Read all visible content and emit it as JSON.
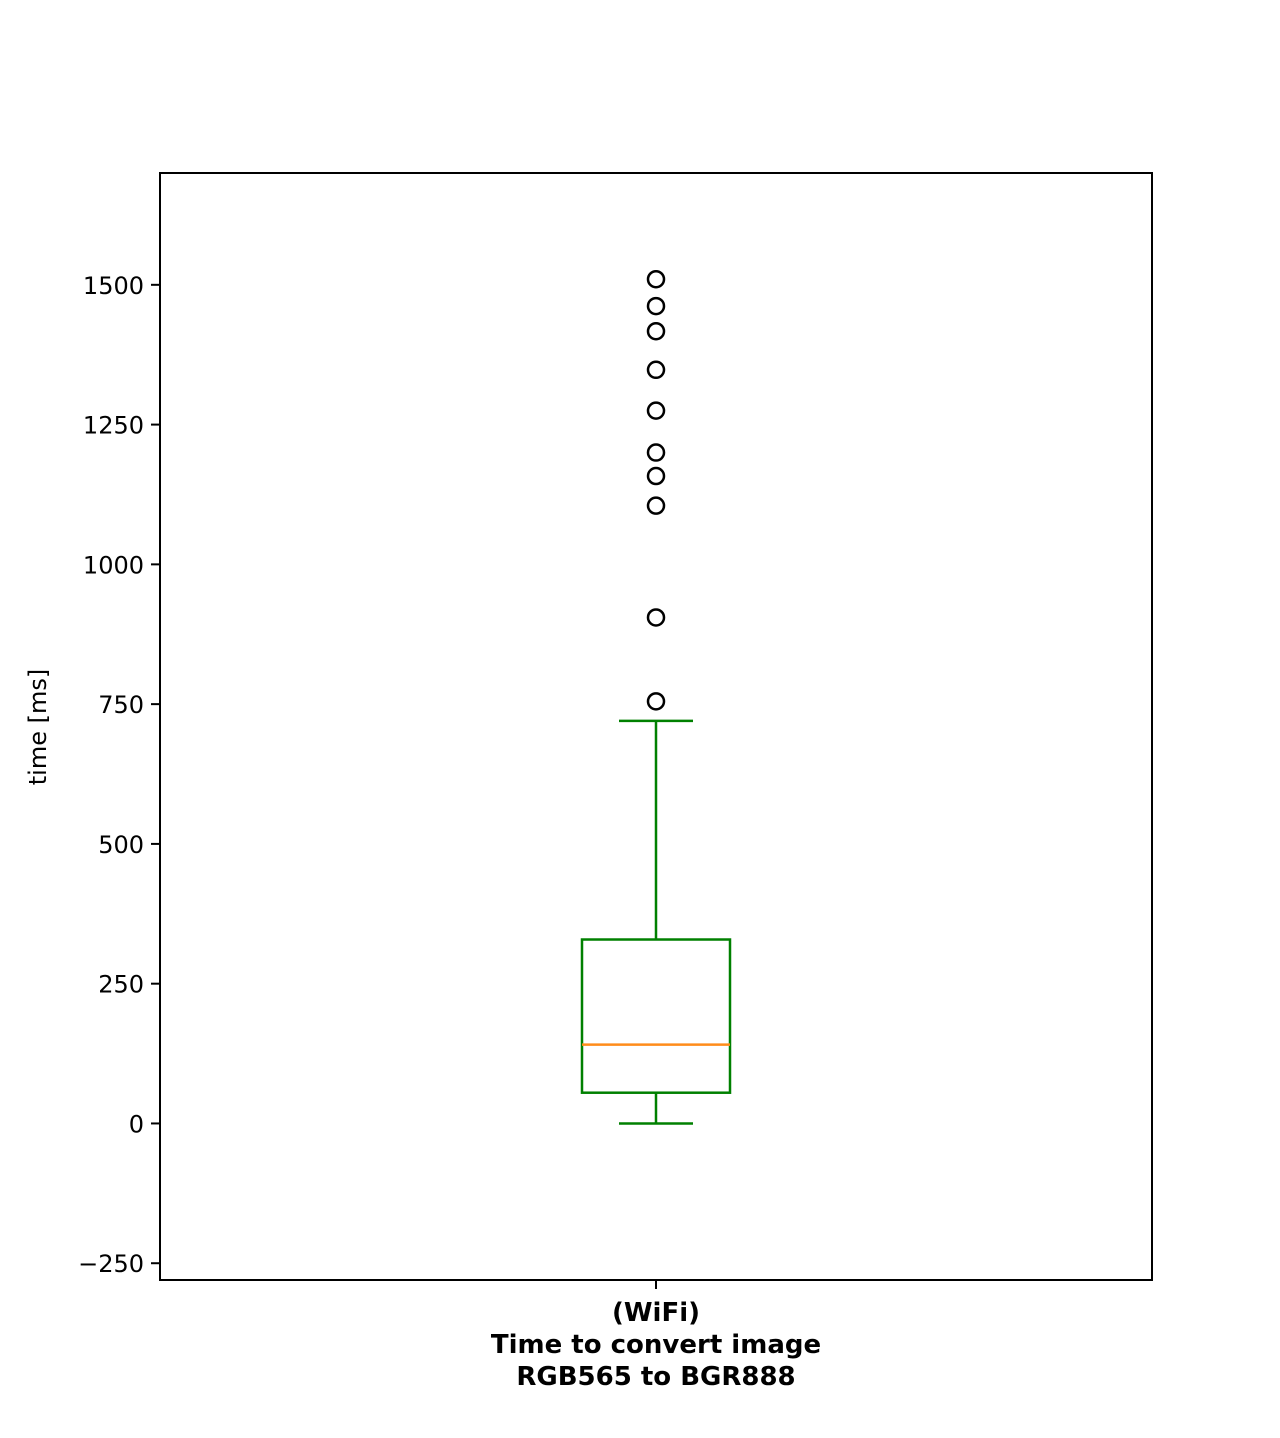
{
  "chart_data": {
    "type": "box",
    "title": "",
    "xlabel": "",
    "ylabel": "time [ms]",
    "ylim": [
      -280,
      1700
    ],
    "yticks": [
      -250,
      0,
      250,
      500,
      750,
      1000,
      1250,
      1500
    ],
    "ytick_labels": [
      "−250",
      "0",
      "250",
      "500",
      "750",
      "1000",
      "1250",
      "1500"
    ],
    "grid": false,
    "legend": "none",
    "categories": [
      {
        "label_lines": [
          "(WiFi)",
          "Time to convert image",
          "RGB565 to BGR888"
        ],
        "whisker_low": 0,
        "q1": 55,
        "median": 141,
        "q3": 329,
        "whisker_high": 720,
        "outliers": [
          755,
          905,
          1105,
          1158,
          1200,
          1275,
          1348,
          1417,
          1462,
          1510
        ]
      }
    ],
    "colors": {
      "box": "#008000",
      "median": "#ff8c1a",
      "outlier": "#000000",
      "axes": "#000000"
    }
  }
}
